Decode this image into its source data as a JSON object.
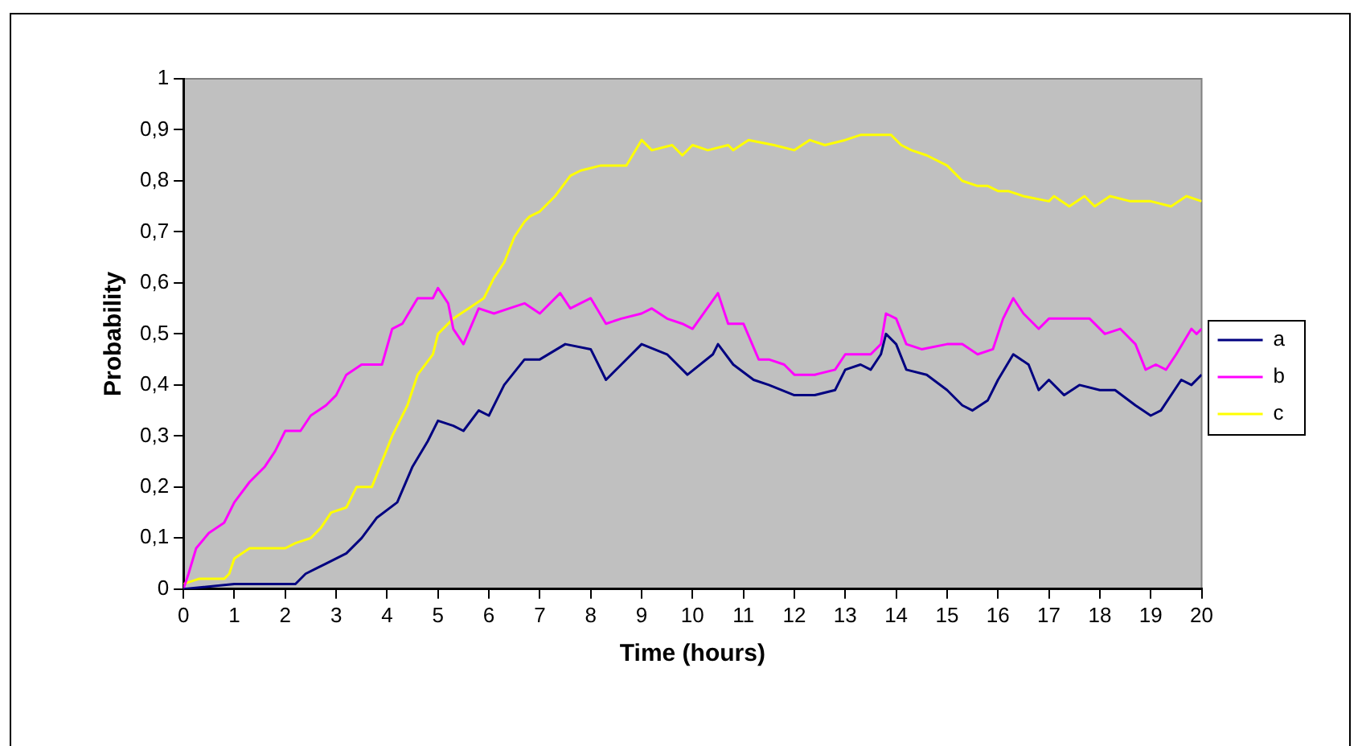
{
  "chart_data": {
    "type": "line",
    "xlabel": "Time (hours)",
    "ylabel": "Probability",
    "xlim": [
      0,
      20
    ],
    "xticks": [
      0,
      1,
      2,
      3,
      4,
      5,
      6,
      7,
      8,
      9,
      10,
      11,
      12,
      13,
      14,
      15,
      16,
      17,
      18,
      19,
      20
    ],
    "ylim": [
      0,
      1
    ],
    "yticks": [
      0,
      {
        "value": 0.1,
        "label": "0,1"
      },
      {
        "value": 0.2,
        "label": "0,2"
      },
      {
        "value": 0.3,
        "label": "0,3"
      },
      {
        "value": 0.4,
        "label": "0,4"
      },
      {
        "value": 0.5,
        "label": "0,5"
      },
      {
        "value": 0.6,
        "label": "0,6"
      },
      {
        "value": 0.7,
        "label": "0,7"
      },
      {
        "value": 0.8,
        "label": "0,8"
      },
      {
        "value": 0.9,
        "label": "0,9"
      },
      1
    ],
    "grid": false,
    "legend": "right",
    "marker": "none",
    "line_style": "solid",
    "series": [
      {
        "name": "a",
        "color": "#000080",
        "x": [
          0,
          1,
          2.2,
          2.4,
          2.6,
          2.8,
          3.2,
          3.5,
          3.8,
          4.2,
          4.5,
          4.8,
          5,
          5.3,
          5.5,
          5.8,
          6,
          6.3,
          6.7,
          7,
          7.5,
          8,
          8.3,
          8.6,
          9,
          9.5,
          9.9,
          10.4,
          10.5,
          10.8,
          11.2,
          11.5,
          12,
          12.4,
          12.8,
          13,
          13.3,
          13.5,
          13.7,
          13.8,
          14,
          14.2,
          14.6,
          15,
          15.3,
          15.5,
          15.8,
          16,
          16.3,
          16.6,
          16.8,
          17,
          17.3,
          17.6,
          18,
          18.3,
          18.7,
          19,
          19.2,
          19.6,
          19.8,
          20
        ],
        "values": [
          0,
          0.01,
          0.01,
          0.03,
          0.04,
          0.05,
          0.07,
          0.1,
          0.14,
          0.17,
          0.24,
          0.29,
          0.33,
          0.32,
          0.31,
          0.35,
          0.34,
          0.4,
          0.45,
          0.45,
          0.48,
          0.47,
          0.41,
          0.44,
          0.48,
          0.46,
          0.42,
          0.46,
          0.48,
          0.44,
          0.41,
          0.4,
          0.38,
          0.38,
          0.39,
          0.43,
          0.44,
          0.43,
          0.46,
          0.5,
          0.48,
          0.43,
          0.42,
          0.39,
          0.36,
          0.35,
          0.37,
          0.41,
          0.46,
          0.44,
          0.39,
          0.41,
          0.38,
          0.4,
          0.39,
          0.39,
          0.36,
          0.34,
          0.35,
          0.41,
          0.4,
          0.42
        ]
      },
      {
        "name": "b",
        "color": "#ff00ff",
        "x": [
          0,
          0.1,
          0.25,
          0.5,
          0.8,
          1,
          1.3,
          1.6,
          1.8,
          2,
          2.3,
          2.5,
          2.8,
          3,
          3.2,
          3.5,
          3.9,
          4.1,
          4.3,
          4.6,
          4.9,
          5,
          5.2,
          5.3,
          5.5,
          5.8,
          6.1,
          6.4,
          6.7,
          7,
          7.4,
          7.6,
          8,
          8.3,
          8.6,
          9,
          9.2,
          9.5,
          9.8,
          10,
          10.5,
          10.7,
          11,
          11.3,
          11.5,
          11.8,
          12,
          12.4,
          12.8,
          13,
          13.3,
          13.5,
          13.7,
          13.8,
          14,
          14.2,
          14.5,
          15,
          15.3,
          15.6,
          15.9,
          16.1,
          16.3,
          16.5,
          16.8,
          17,
          17.3,
          17.8,
          18.1,
          18.4,
          18.7,
          18.9,
          19.1,
          19.3,
          19.5,
          19.8,
          19.9,
          20
        ],
        "values": [
          0,
          0.03,
          0.08,
          0.11,
          0.13,
          0.17,
          0.21,
          0.24,
          0.27,
          0.31,
          0.31,
          0.34,
          0.36,
          0.38,
          0.42,
          0.44,
          0.44,
          0.51,
          0.52,
          0.57,
          0.57,
          0.59,
          0.56,
          0.51,
          0.48,
          0.55,
          0.54,
          0.55,
          0.56,
          0.54,
          0.58,
          0.55,
          0.57,
          0.52,
          0.53,
          0.54,
          0.55,
          0.53,
          0.52,
          0.51,
          0.58,
          0.52,
          0.52,
          0.45,
          0.45,
          0.44,
          0.42,
          0.42,
          0.43,
          0.46,
          0.46,
          0.46,
          0.48,
          0.54,
          0.53,
          0.48,
          0.47,
          0.48,
          0.48,
          0.46,
          0.47,
          0.53,
          0.57,
          0.54,
          0.51,
          0.53,
          0.53,
          0.53,
          0.5,
          0.51,
          0.48,
          0.43,
          0.44,
          0.43,
          0.46,
          0.51,
          0.5,
          0.51
        ]
      },
      {
        "name": "c",
        "color": "#ffff00",
        "x": [
          0,
          0.3,
          0.8,
          0.9,
          1,
          1.3,
          2,
          2.2,
          2.5,
          2.7,
          2.9,
          3.2,
          3.4,
          3.7,
          3.9,
          4.1,
          4.4,
          4.6,
          4.9,
          5,
          5.3,
          5.6,
          5.9,
          6.1,
          6.3,
          6.5,
          6.7,
          6.8,
          7,
          7.3,
          7.6,
          7.8,
          8.2,
          8.4,
          8.7,
          9,
          9.2,
          9.6,
          9.8,
          10,
          10.3,
          10.7,
          10.8,
          11.1,
          11.6,
          12,
          12.3,
          12.6,
          13,
          13.3,
          13.9,
          14.1,
          14.3,
          14.6,
          15,
          15.3,
          15.6,
          15.8,
          16,
          16.2,
          16.5,
          17,
          17.1,
          17.4,
          17.7,
          17.9,
          18.2,
          18.6,
          19,
          19.4,
          19.7,
          20
        ],
        "values": [
          0.01,
          0.02,
          0.02,
          0.03,
          0.06,
          0.08,
          0.08,
          0.09,
          0.1,
          0.12,
          0.15,
          0.16,
          0.2,
          0.2,
          0.25,
          0.3,
          0.36,
          0.42,
          0.46,
          0.5,
          0.53,
          0.55,
          0.57,
          0.61,
          0.64,
          0.69,
          0.72,
          0.73,
          0.74,
          0.77,
          0.81,
          0.82,
          0.83,
          0.83,
          0.83,
          0.88,
          0.86,
          0.87,
          0.85,
          0.87,
          0.86,
          0.87,
          0.86,
          0.88,
          0.87,
          0.86,
          0.88,
          0.87,
          0.88,
          0.89,
          0.89,
          0.87,
          0.86,
          0.85,
          0.83,
          0.8,
          0.79,
          0.79,
          0.78,
          0.78,
          0.77,
          0.76,
          0.77,
          0.75,
          0.77,
          0.75,
          0.77,
          0.76,
          0.76,
          0.75,
          0.77,
          0.76
        ]
      }
    ]
  }
}
